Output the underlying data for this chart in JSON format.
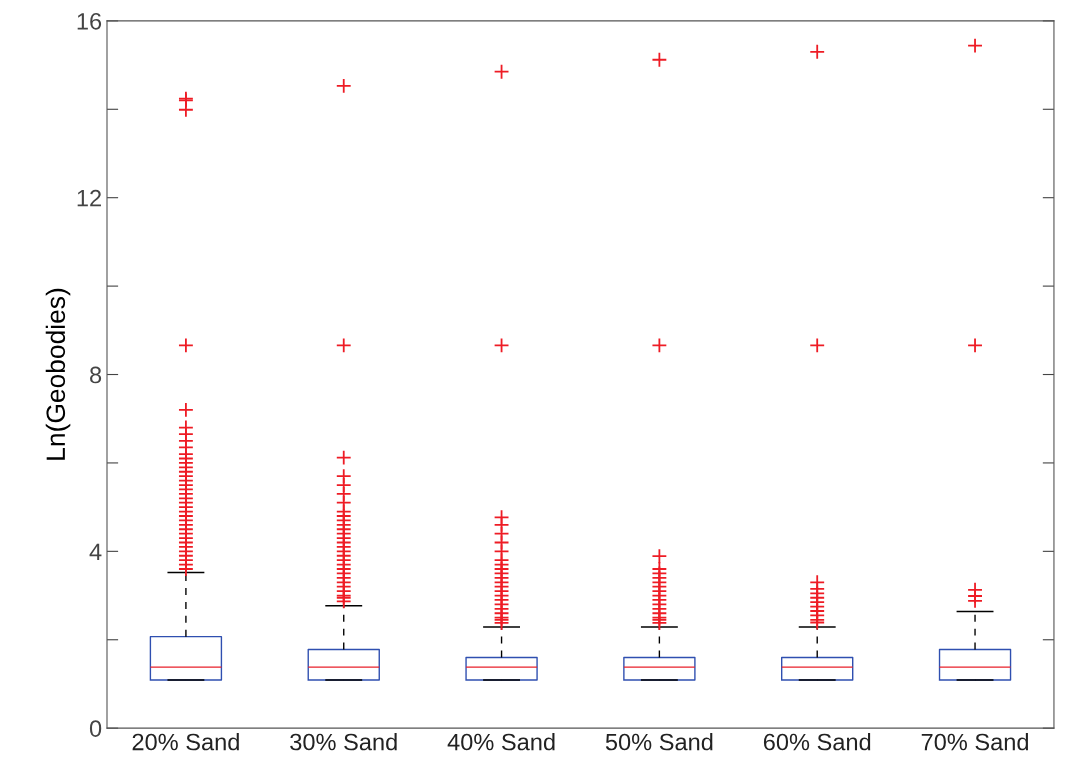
{
  "chart_data": {
    "type": "box",
    "ylabel": "Ln(Geobodies)",
    "categories": [
      "20% Sand",
      "30% Sand",
      "40% Sand",
      "50% Sand",
      "60% Sand",
      "70% Sand"
    ],
    "ylim": [
      0,
      16
    ],
    "yticks": [
      0,
      {
        "value": 2,
        "label": null
      },
      4,
      {
        "value": 6,
        "label": null
      },
      8,
      {
        "value": 10,
        "label": null
      },
      12,
      {
        "value": 14,
        "label": null
      },
      16
    ],
    "grid": false,
    "marker": "cross",
    "color": "#2f4fb0",
    "boxes": [
      {
        "low": 1.09,
        "q1": 1.09,
        "median": 1.38,
        "q3": 2.07,
        "high": 3.52,
        "outliers": [
          3.6,
          3.7,
          3.8,
          3.9,
          4.0,
          4.1,
          4.2,
          4.3,
          4.4,
          4.5,
          4.6,
          4.7,
          4.8,
          4.9,
          5.0,
          5.1,
          5.2,
          5.3,
          5.4,
          5.5,
          5.6,
          5.7,
          5.8,
          5.9,
          6.0,
          6.1,
          6.2,
          6.35,
          6.5,
          6.65,
          6.8,
          7.2,
          8.66,
          13.99,
          14.2,
          14.24
        ]
      },
      {
        "low": 1.09,
        "q1": 1.09,
        "median": 1.38,
        "q3": 1.78,
        "high": 2.77,
        "outliers": [
          2.87,
          2.95,
          3.0,
          3.1,
          3.2,
          3.3,
          3.4,
          3.5,
          3.6,
          3.7,
          3.8,
          3.9,
          4.0,
          4.1,
          4.2,
          4.3,
          4.4,
          4.5,
          4.6,
          4.7,
          4.8,
          4.9,
          5.1,
          5.3,
          5.5,
          5.7,
          6.12,
          8.66,
          14.53
        ]
      },
      {
        "low": 1.09,
        "q1": 1.09,
        "median": 1.38,
        "q3": 1.6,
        "high": 2.29,
        "outliers": [
          2.38,
          2.45,
          2.5,
          2.6,
          2.7,
          2.8,
          2.9,
          3.0,
          3.1,
          3.2,
          3.3,
          3.4,
          3.5,
          3.6,
          3.7,
          3.8,
          4.0,
          4.2,
          4.4,
          4.6,
          4.77,
          8.66,
          14.85
        ]
      },
      {
        "low": 1.09,
        "q1": 1.09,
        "median": 1.38,
        "q3": 1.6,
        "high": 2.29,
        "outliers": [
          2.38,
          2.45,
          2.5,
          2.6,
          2.7,
          2.8,
          2.9,
          3.0,
          3.1,
          3.2,
          3.3,
          3.4,
          3.5,
          3.6,
          3.89,
          8.66,
          15.12
        ]
      },
      {
        "low": 1.09,
        "q1": 1.09,
        "median": 1.38,
        "q3": 1.6,
        "high": 2.29,
        "outliers": [
          2.39,
          2.45,
          2.55,
          2.65,
          2.75,
          2.85,
          2.95,
          3.05,
          3.15,
          3.3,
          8.66,
          15.3
        ]
      },
      {
        "low": 1.09,
        "q1": 1.09,
        "median": 1.38,
        "q3": 1.78,
        "high": 2.64,
        "outliers": [
          2.88,
          2.99,
          3.13,
          8.66,
          15.44
        ]
      }
    ]
  }
}
